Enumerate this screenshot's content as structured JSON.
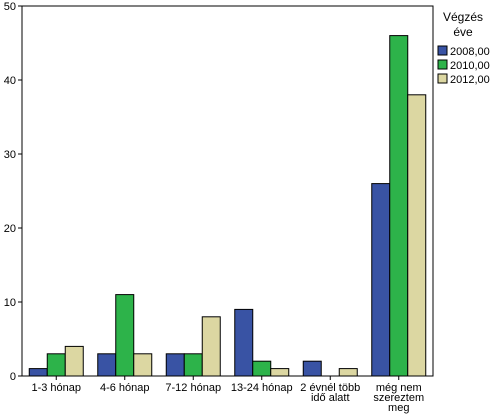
{
  "chart_data": {
    "type": "bar",
    "categories": [
      [
        "1-3 hónap"
      ],
      [
        "4-6 hónap"
      ],
      [
        "7-12 hónap"
      ],
      [
        "13-24 hónap"
      ],
      [
        "2 évnél több",
        "idő alatt"
      ],
      [
        "még nem",
        "szereztem",
        "meg"
      ]
    ],
    "series": [
      {
        "name": "2008,00",
        "color": "#3953a4",
        "values": [
          1,
          3,
          3,
          9,
          2,
          26
        ]
      },
      {
        "name": "2010,00",
        "color": "#2db34a",
        "values": [
          3,
          11,
          3,
          2,
          0,
          46
        ]
      },
      {
        "name": "2012,00",
        "color": "#dcd7a2",
        "values": [
          4,
          3,
          8,
          1,
          1,
          38
        ]
      }
    ],
    "ylim": [
      0,
      50
    ],
    "yticks": [
      0,
      10,
      20,
      30,
      40,
      50
    ],
    "legend": {
      "title": [
        "Végzés",
        "éve"
      ],
      "placement": "right"
    },
    "grid": false
  }
}
